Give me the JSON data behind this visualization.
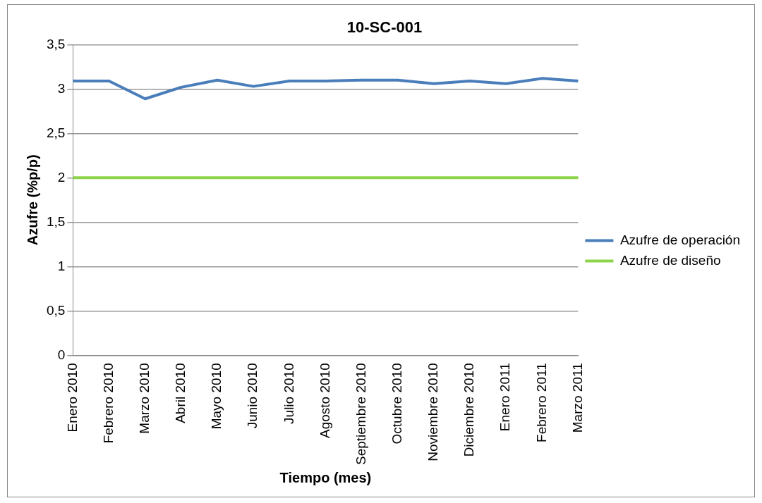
{
  "chart_data": {
    "type": "line",
    "title": "10-SC-001",
    "xlabel": "Tiempo (mes)",
    "ylabel": "Azufre (%p/p)",
    "categories": [
      "Enero 2010",
      "Febrero 2010",
      "Marzo 2010",
      "Abril 2010",
      "Mayo 2010",
      "Junio 2010",
      "Julio 2010",
      "Agosto 2010",
      "Septiembre 2010",
      "Octubre 2010",
      "Noviembre 2010",
      "Diciembre 2010",
      "Enero 2011",
      "Febrero 2011",
      "Marzo 2011"
    ],
    "series": [
      {
        "name": "Azufre de operación",
        "color": "#4a7ebb",
        "values": [
          3.09,
          3.09,
          2.89,
          3.02,
          3.1,
          3.03,
          3.09,
          3.09,
          3.1,
          3.1,
          3.06,
          3.09,
          3.06,
          3.12,
          3.09
        ]
      },
      {
        "name": "Azufre de diseño",
        "color": "#8ed44a",
        "values": [
          2,
          2,
          2,
          2,
          2,
          2,
          2,
          2,
          2,
          2,
          2,
          2,
          2,
          2,
          2
        ]
      }
    ],
    "ylim": [
      0,
      3.5
    ],
    "yticks": [
      {
        "value": 0,
        "label": "0"
      },
      {
        "value": 0.5,
        "label": "0,5"
      },
      {
        "value": 1,
        "label": "1"
      },
      {
        "value": 1.5,
        "label": "1,5"
      },
      {
        "value": 2,
        "label": "2"
      },
      {
        "value": 2.5,
        "label": "2,5"
      },
      {
        "value": 3,
        "label": "3"
      },
      {
        "value": 3.5,
        "label": "3,5"
      }
    ],
    "grid": "y",
    "legend": "right",
    "marker": "none"
  }
}
